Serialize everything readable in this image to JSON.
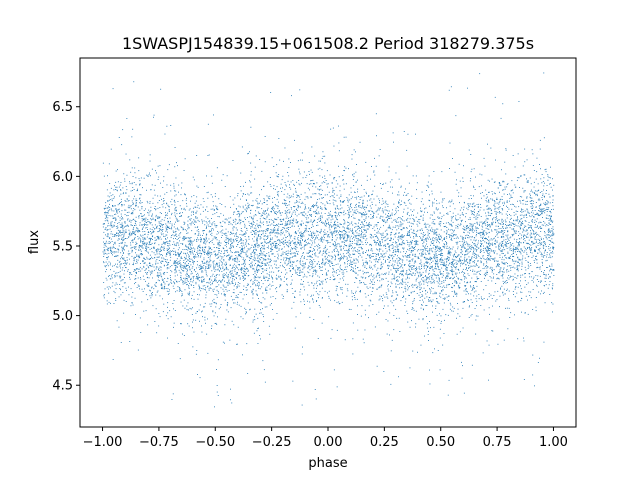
{
  "chart_data": {
    "type": "scatter",
    "title": "1SWASPJ154839.15+061508.2 Period 318279.375s",
    "xlabel": "phase",
    "ylabel": "flux",
    "xlim": [
      -1.1,
      1.1
    ],
    "ylim": [
      4.2,
      6.85
    ],
    "x_ticks": [
      -1.0,
      -0.75,
      -0.5,
      -0.25,
      0.0,
      0.25,
      0.5,
      0.75,
      1.0
    ],
    "x_tick_labels": [
      "−1.00",
      "−0.75",
      "−0.50",
      "−0.25",
      "0.00",
      "0.25",
      "0.50",
      "0.75",
      "1.00"
    ],
    "y_ticks": [
      4.5,
      5.0,
      5.5,
      6.0,
      6.5
    ],
    "y_tick_labels": [
      "4.5",
      "5.0",
      "5.5",
      "6.0",
      "6.5"
    ],
    "grid": false,
    "marker_color": "#1f77b4",
    "x_range_of_points": [
      -1.0,
      1.0
    ],
    "series_profile": {
      "phase": [
        -1.0,
        -0.75,
        -0.5,
        -0.25,
        0.0,
        0.25,
        0.5,
        0.75,
        1.0
      ],
      "mean_flux": [
        5.6,
        5.5,
        5.4,
        5.55,
        5.6,
        5.5,
        5.4,
        5.55,
        5.6
      ]
    },
    "flux_scatter_std": 0.22
  }
}
